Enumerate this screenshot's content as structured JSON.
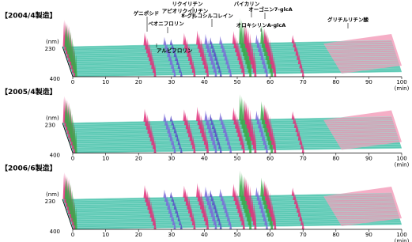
{
  "panels": [
    {
      "label": "【2004/4製造】",
      "x_ticks": [
        0,
        10,
        20,
        30,
        40,
        50,
        60,
        70,
        80,
        90,
        100
      ],
      "x_unit": "(min)",
      "y_unit": "(nm)",
      "y_ticks": [
        "230",
        "400"
      ]
    },
    {
      "label": "【2005/4製造】",
      "x_ticks": [
        0,
        10,
        20,
        30,
        40,
        50,
        60,
        70,
        80,
        90,
        100
      ],
      "x_unit": "(min)",
      "y_unit": "(nm)",
      "y_ticks": [
        "230",
        "400"
      ]
    },
    {
      "label": "【2006/6製造】",
      "x_ticks": [
        0,
        10,
        20,
        30,
        40,
        50,
        60,
        70,
        80,
        90,
        100
      ],
      "x_unit": "(min)",
      "y_unit": "(nm)",
      "y_ticks": [
        "230",
        "400"
      ]
    }
  ],
  "annotations": [
    "ゲニポシド",
    "アルビフロリン",
    "ペオニフロリン",
    "リクイリチン",
    "アピオリクイリチン",
    "8-グルコシルコレイン",
    "バイカリン",
    "オーゴニン7-glcA",
    "オロキシリンA-glcA",
    "グリチルリチン酸"
  ]
}
